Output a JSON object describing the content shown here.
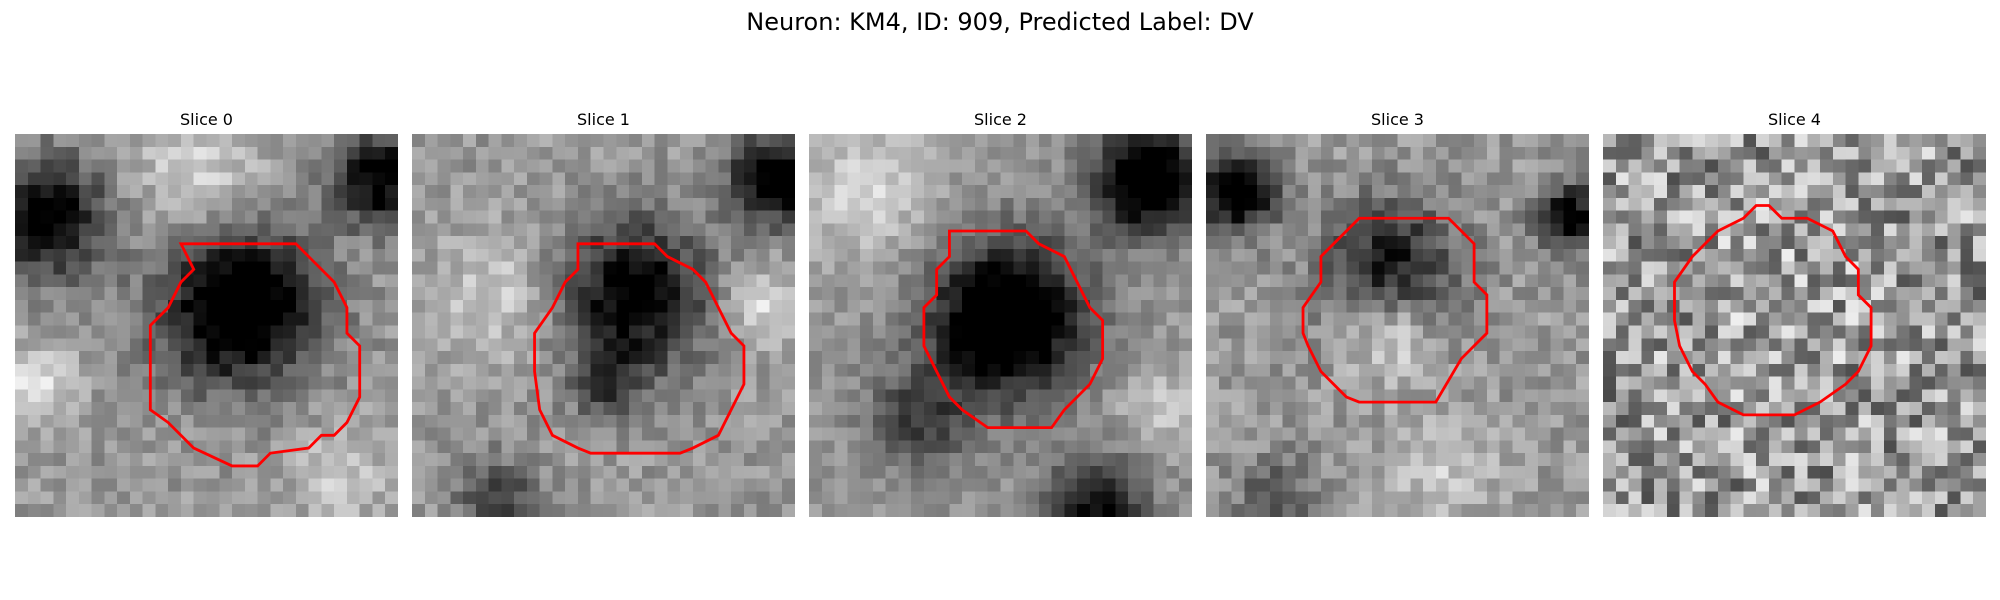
{
  "figure": {
    "title": "Neuron: KM4, ID: 909, Predicted Label: DV"
  },
  "panels": [
    {
      "title": "Slice 0"
    },
    {
      "title": "Slice 1"
    },
    {
      "title": "Slice 2"
    },
    {
      "title": "Slice 3"
    },
    {
      "title": "Slice 4"
    }
  ],
  "colors": {
    "contour": "#ff0000",
    "background": "#ffffff"
  }
}
